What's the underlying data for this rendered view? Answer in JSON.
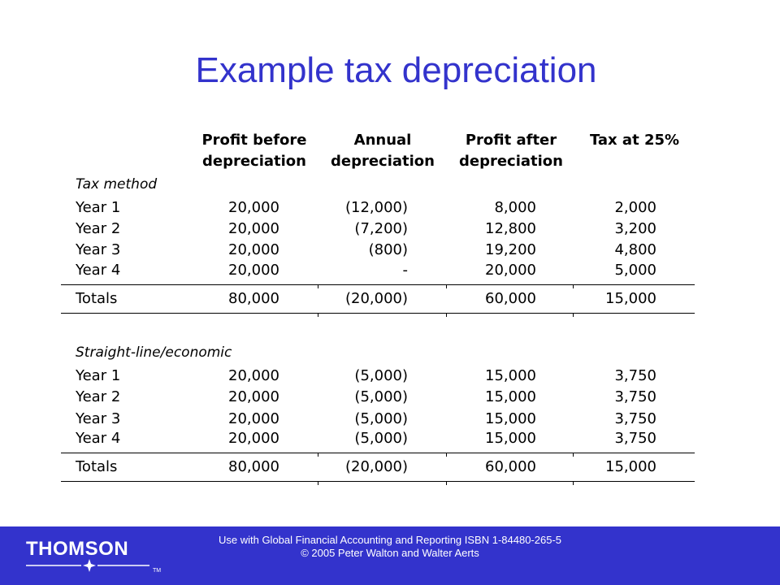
{
  "title": "Example tax depreciation",
  "columns": [
    {
      "line1": "Profit before",
      "line2": "depreciation"
    },
    {
      "line1": "Annual",
      "line2": "depreciation"
    },
    {
      "line1": "Profit after",
      "line2": "depreciation"
    },
    {
      "line1": "Tax at 25%",
      "line2": ""
    }
  ],
  "sections": [
    {
      "heading": "Tax method",
      "rows": [
        {
          "label": "Year 1",
          "values": [
            "20,000",
            "(12,000)",
            "8,000",
            "2,000"
          ]
        },
        {
          "label": "Year 2",
          "values": [
            "20,000",
            "(7,200)",
            "12,800",
            "3,200"
          ]
        },
        {
          "label": "Year 3",
          "values": [
            "20,000",
            "(800)",
            "19,200",
            "4,800"
          ]
        },
        {
          "label": "Year 4",
          "values": [
            "20,000",
            "-",
            "20,000",
            "5,000"
          ]
        }
      ],
      "totals": {
        "label": "Totals",
        "values": [
          "80,000",
          "(20,000)",
          "60,000",
          "15,000"
        ]
      }
    },
    {
      "heading": "Straight-line/economic",
      "rows": [
        {
          "label": "Year 1",
          "values": [
            "20,000",
            "(5,000)",
            "15,000",
            "3,750"
          ]
        },
        {
          "label": "Year 2",
          "values": [
            "20,000",
            "(5,000)",
            "15,000",
            "3,750"
          ]
        },
        {
          "label": "Year 3",
          "values": [
            "20,000",
            "(5,000)",
            "15,000",
            "3,750"
          ]
        },
        {
          "label": "Year 4",
          "values": [
            "20,000",
            "(5,000)",
            "15,000",
            "3,750"
          ]
        }
      ],
      "totals": {
        "label": "Totals",
        "values": [
          "80,000",
          "(20,000)",
          "60,000",
          "15,000"
        ]
      }
    }
  ],
  "footer": {
    "logo": "THOMSON",
    "trademark": "TM",
    "line1": "Use with Global Financial Accounting and Reporting ISBN 1-84480-265-5",
    "line2": "© 2005 Peter Walton and Walter Aerts"
  },
  "colors": {
    "title": "#3333cc",
    "footer_bg": "#3333cc"
  }
}
